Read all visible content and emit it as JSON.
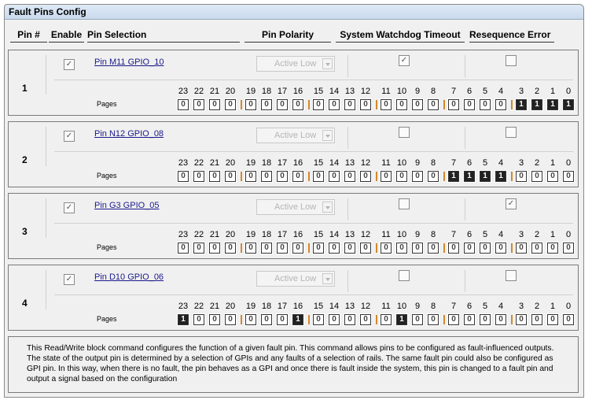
{
  "title": "Fault Pins Config",
  "headers": {
    "pin": "Pin #",
    "enable": "Enable",
    "selection": "Pin Selection",
    "polarity": "Pin Polarity",
    "watchdog": "System Watchdog Timeout",
    "reseq": "Resequence Error"
  },
  "pages_label": "Pages",
  "bit_labels": [
    "23",
    "22",
    "21",
    "20",
    "19",
    "18",
    "17",
    "16",
    "15",
    "14",
    "13",
    "12",
    "11",
    "10",
    "9",
    "8",
    "7",
    "6",
    "5",
    "4",
    "3",
    "2",
    "1",
    "0"
  ],
  "rows": [
    {
      "pin": "1",
      "enabled": true,
      "selection": "Pin M11 GPIO_10",
      "polarity": "Active Low",
      "watchdog": true,
      "reseq": false,
      "bits": [
        0,
        0,
        0,
        0,
        0,
        0,
        0,
        0,
        0,
        0,
        0,
        0,
        0,
        0,
        0,
        0,
        0,
        0,
        0,
        0,
        1,
        1,
        1,
        1
      ]
    },
    {
      "pin": "2",
      "enabled": true,
      "selection": "Pin N12 GPIO_08",
      "polarity": "Active Low",
      "watchdog": false,
      "reseq": false,
      "bits": [
        0,
        0,
        0,
        0,
        0,
        0,
        0,
        0,
        0,
        0,
        0,
        0,
        0,
        0,
        0,
        0,
        1,
        1,
        1,
        1,
        0,
        0,
        0,
        0
      ]
    },
    {
      "pin": "3",
      "enabled": true,
      "selection": "Pin G3 GPIO_05",
      "polarity": "Active Low",
      "watchdog": false,
      "reseq": true,
      "bits": [
        0,
        0,
        0,
        0,
        0,
        0,
        0,
        0,
        0,
        0,
        0,
        0,
        0,
        0,
        0,
        0,
        0,
        0,
        0,
        0,
        0,
        0,
        0,
        0
      ]
    },
    {
      "pin": "4",
      "enabled": true,
      "selection": "Pin D10 GPIO_06",
      "polarity": "Active Low",
      "watchdog": false,
      "reseq": false,
      "bits": [
        1,
        0,
        0,
        0,
        0,
        0,
        0,
        1,
        0,
        0,
        0,
        0,
        0,
        1,
        0,
        0,
        0,
        0,
        0,
        0,
        0,
        0,
        0,
        0
      ]
    }
  ],
  "description": "This Read/Write block command configures the function of a given fault pin. This command allows pins to be configured as fault-influenced outputs. The state of the output pin is determined by a selection of GPIs and any faults of a selection of rails. The same fault pin could also be configured as GPI pin. In this way, when there is no fault, the pin behaves as a GPI and once there is fault inside the system, this pin is changed to a fault pin and output a signal based on the configuration",
  "colors": {
    "bit_on": "#222222",
    "group_separator": "#d08a2c",
    "link": "#1a1a8c"
  }
}
